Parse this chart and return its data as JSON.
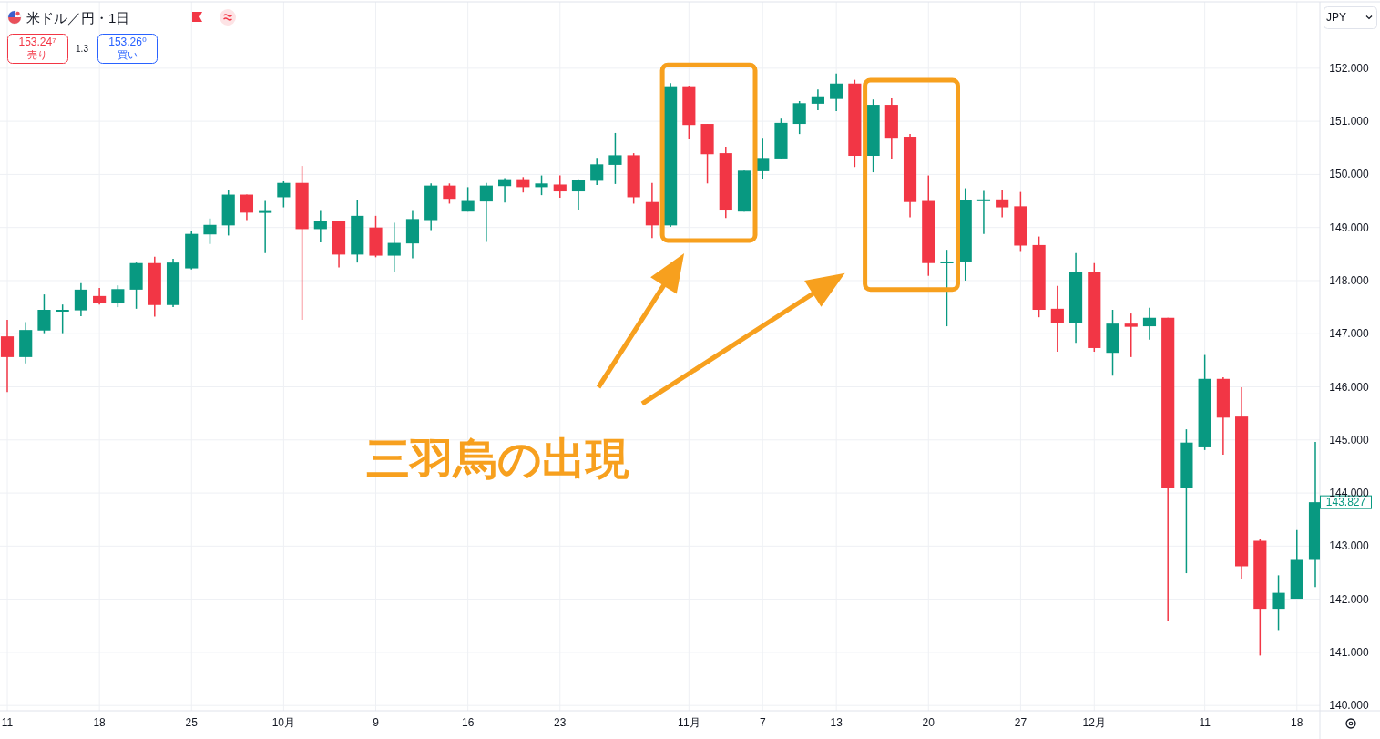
{
  "chart_data": {
    "type": "candlestick",
    "title": "米ドル／円・1日",
    "categories": [
      "11",
      null,
      null,
      null,
      null,
      "18",
      null,
      null,
      null,
      null,
      "25",
      null,
      null,
      null,
      null,
      "10月",
      null,
      null,
      null,
      null,
      "9",
      null,
      null,
      null,
      null,
      "16",
      null,
      null,
      null,
      null,
      "23",
      null,
      null,
      null,
      null,
      null,
      null,
      "11月",
      null,
      null,
      null,
      "7",
      null,
      null,
      null,
      "13",
      null,
      null,
      null,
      null,
      "20",
      null,
      null,
      null,
      null,
      "27",
      null,
      null,
      null,
      "12月",
      null,
      null,
      null,
      null,
      null,
      "11",
      null,
      null,
      null,
      null,
      "18",
      null
    ],
    "ohlc": [
      [
        146.95,
        147.26,
        145.9,
        146.56
      ],
      [
        146.56,
        147.22,
        146.44,
        147.07
      ],
      [
        147.06,
        147.74,
        147.01,
        147.45
      ],
      [
        147.44,
        147.55,
        147.01,
        147.45
      ],
      [
        147.44,
        147.95,
        147.33,
        147.83
      ],
      [
        147.71,
        147.86,
        147.55,
        147.57
      ],
      [
        147.57,
        147.91,
        147.5,
        147.84
      ],
      [
        147.83,
        148.34,
        147.47,
        148.33
      ],
      [
        148.33,
        148.45,
        147.32,
        147.54
      ],
      [
        147.54,
        148.41,
        147.5,
        148.34
      ],
      [
        148.23,
        148.94,
        148.21,
        148.88
      ],
      [
        148.87,
        149.17,
        148.69,
        149.05
      ],
      [
        149.04,
        149.71,
        148.85,
        149.62
      ],
      [
        149.62,
        149.62,
        149.14,
        149.28
      ],
      [
        149.3,
        149.5,
        148.52,
        149.31
      ],
      [
        149.57,
        149.87,
        149.38,
        149.84
      ],
      [
        149.84,
        150.16,
        147.26,
        148.97
      ],
      [
        148.97,
        149.31,
        148.72,
        149.12
      ],
      [
        149.12,
        149.12,
        148.25,
        148.49
      ],
      [
        148.49,
        149.52,
        148.34,
        149.22
      ],
      [
        149.0,
        149.22,
        148.44,
        148.47
      ],
      [
        148.47,
        149.09,
        148.16,
        148.71
      ],
      [
        148.7,
        149.31,
        148.42,
        149.16
      ],
      [
        149.14,
        149.83,
        148.95,
        149.79
      ],
      [
        149.79,
        149.83,
        149.45,
        149.54
      ],
      [
        149.3,
        149.76,
        149.3,
        149.5
      ],
      [
        149.49,
        149.84,
        148.73,
        149.79
      ],
      [
        149.78,
        149.93,
        149.47,
        149.91
      ],
      [
        149.91,
        149.95,
        149.66,
        149.76
      ],
      [
        149.76,
        149.98,
        149.61,
        149.83
      ],
      [
        149.81,
        149.98,
        149.56,
        149.68
      ],
      [
        149.68,
        149.91,
        149.32,
        149.9
      ],
      [
        149.88,
        150.31,
        149.8,
        150.19
      ],
      [
        150.18,
        150.78,
        149.82,
        150.36
      ],
      [
        150.36,
        150.4,
        149.45,
        149.57
      ],
      [
        149.48,
        149.84,
        148.8,
        149.04
      ],
      [
        149.04,
        151.72,
        149.01,
        151.66
      ],
      [
        151.66,
        151.67,
        150.66,
        150.93
      ],
      [
        150.95,
        150.95,
        149.83,
        150.38
      ],
      [
        150.4,
        150.52,
        149.18,
        149.32
      ],
      [
        149.3,
        150.07,
        149.3,
        150.07
      ],
      [
        150.06,
        150.69,
        149.92,
        150.31
      ],
      [
        150.3,
        151.05,
        150.3,
        150.97
      ],
      [
        150.95,
        151.38,
        150.76,
        151.34
      ],
      [
        151.33,
        151.6,
        151.21,
        151.47
      ],
      [
        151.42,
        151.9,
        151.19,
        151.71
      ],
      [
        151.71,
        151.78,
        150.14,
        150.35
      ],
      [
        150.35,
        151.41,
        150.04,
        151.31
      ],
      [
        151.31,
        151.43,
        150.28,
        150.69
      ],
      [
        150.71,
        150.76,
        149.19,
        149.48
      ],
      [
        149.5,
        149.98,
        148.09,
        148.33
      ],
      [
        148.33,
        148.58,
        147.14,
        148.36
      ],
      [
        148.36,
        149.74,
        148.0,
        149.52
      ],
      [
        149.52,
        149.69,
        148.88,
        149.53
      ],
      [
        149.53,
        149.71,
        149.19,
        149.38
      ],
      [
        149.4,
        149.67,
        148.54,
        148.66
      ],
      [
        148.67,
        148.83,
        147.31,
        147.45
      ],
      [
        147.47,
        147.9,
        146.66,
        147.21
      ],
      [
        147.21,
        148.52,
        146.83,
        148.17
      ],
      [
        148.17,
        148.33,
        146.66,
        146.73
      ],
      [
        146.64,
        147.45,
        146.21,
        147.19
      ],
      [
        147.19,
        147.38,
        146.56,
        147.13
      ],
      [
        147.14,
        147.49,
        146.89,
        147.3
      ],
      [
        147.3,
        147.3,
        141.6,
        144.09
      ],
      [
        144.09,
        145.2,
        142.49,
        144.95
      ],
      [
        144.86,
        146.6,
        144.81,
        146.15
      ],
      [
        146.15,
        146.18,
        144.72,
        145.42
      ],
      [
        145.44,
        145.99,
        142.39,
        142.62
      ],
      [
        143.1,
        143.14,
        140.94,
        141.82
      ],
      [
        141.82,
        142.45,
        141.42,
        142.12
      ],
      [
        142.01,
        143.3,
        142.01,
        142.74
      ],
      [
        142.74,
        144.96,
        142.23,
        143.827
      ]
    ],
    "colors": [
      "#f23645",
      "#089981",
      "#089981",
      "#089981",
      "#089981",
      "#f23645",
      "#089981",
      "#089981",
      "#f23645",
      "#089981",
      "#089981",
      "#089981",
      "#089981",
      "#f23645",
      "#089981",
      "#089981",
      "#f23645",
      "#089981",
      "#f23645",
      "#089981",
      "#f23645",
      "#089981",
      "#089981",
      "#089981",
      "#f23645",
      "#089981",
      "#089981",
      "#089981",
      "#f23645",
      "#089981",
      "#f23645",
      "#089981",
      "#089981",
      "#089981",
      "#f23645",
      "#f23645",
      "#089981",
      "#f23645",
      "#f23645",
      "#f23645",
      "#089981",
      "#089981",
      "#089981",
      "#089981",
      "#089981",
      "#089981",
      "#f23645",
      "#089981",
      "#f23645",
      "#f23645",
      "#f23645",
      "#089981",
      "#089981",
      "#089981",
      "#f23645",
      "#f23645",
      "#f23645",
      "#f23645",
      "#089981",
      "#f23645",
      "#089981",
      "#f23645",
      "#089981",
      "#f23645",
      "#089981",
      "#089981",
      "#f23645",
      "#f23645",
      "#f23645",
      "#089981",
      "#089981",
      "#089981"
    ],
    "ylim": [
      139.9,
      153.25
    ],
    "yticks": [
      {
        "value": 140,
        "label": "140.000"
      },
      {
        "value": 141,
        "label": "141.000"
      },
      {
        "value": 142,
        "label": "142.000"
      },
      {
        "value": 143,
        "label": "143.000"
      },
      {
        "value": 144,
        "label": "144.000"
      },
      {
        "value": 145,
        "label": "145.000"
      },
      {
        "value": 146,
        "label": "146.000"
      },
      {
        "value": 147,
        "label": "147.000"
      },
      {
        "value": 148,
        "label": "148.000"
      },
      {
        "value": 149,
        "label": "149.000"
      },
      {
        "value": 150,
        "label": "150.000"
      },
      {
        "value": 151,
        "label": "151.000"
      },
      {
        "value": 152,
        "label": "152.000"
      }
    ],
    "grid": true,
    "annotations": [
      "153.24⁷",
      "売り",
      "1.3",
      "153.26⁰",
      "買い",
      "JPY",
      "三羽烏の出現",
      "143.827"
    ]
  }
}
